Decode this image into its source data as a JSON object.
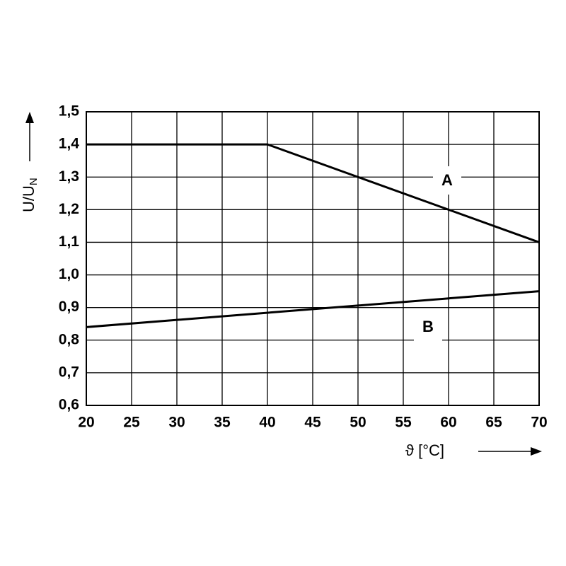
{
  "chart_data": {
    "type": "line",
    "x_label": "ϑ [°C]",
    "y_label": "U/U",
    "y_label_subscript": "N",
    "series": [
      {
        "name": "A",
        "color": "#000000",
        "x": [
          20,
          40,
          70
        ],
        "values": [
          1.4,
          1.4,
          1.1
        ]
      },
      {
        "name": "B",
        "color": "#000000",
        "x": [
          20,
          70
        ],
        "values": [
          0.84,
          0.95
        ]
      }
    ],
    "xlim": [
      20,
      70
    ],
    "xticks": [
      20,
      25,
      30,
      35,
      40,
      45,
      50,
      55,
      60,
      65,
      70
    ],
    "ylim": [
      0.6,
      1.5
    ],
    "yticks": [
      {
        "value": 0.6,
        "label": "0,6"
      },
      {
        "value": 0.7,
        "label": "0,7"
      },
      {
        "value": 0.8,
        "label": "0,8"
      },
      {
        "value": 0.9,
        "label": "0,9"
      },
      {
        "value": 1.0,
        "label": "1,0"
      },
      {
        "value": 1.1,
        "label": "1,1"
      },
      {
        "value": 1.2,
        "label": "1,2"
      },
      {
        "value": 1.3,
        "label": "1,3"
      },
      {
        "value": 1.4,
        "label": "1,4"
      },
      {
        "value": 1.5,
        "label": "1,5"
      }
    ],
    "grid": true
  }
}
